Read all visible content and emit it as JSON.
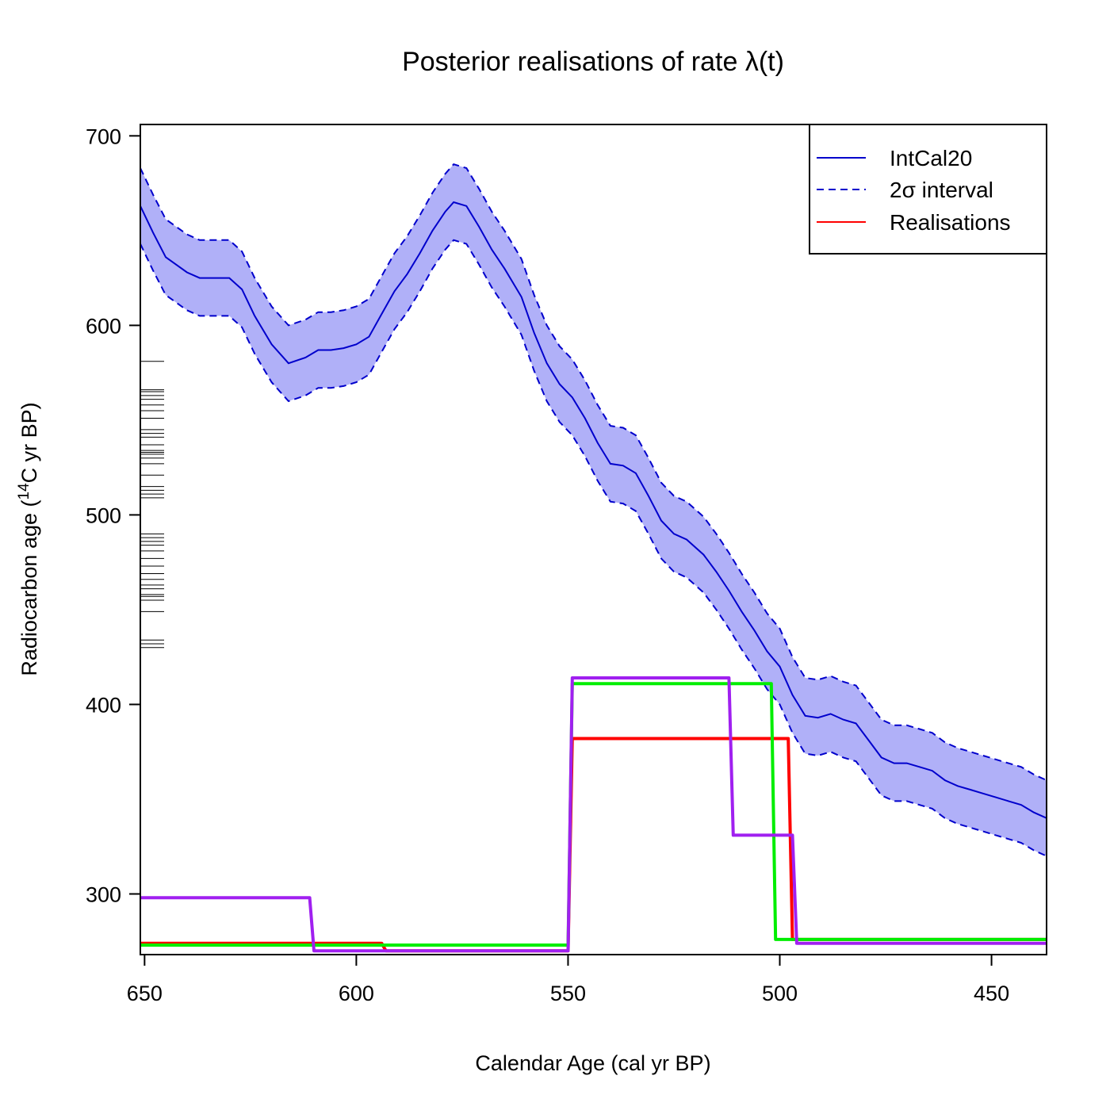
{
  "chart_data": {
    "type": "line",
    "title": "Posterior realisations of rate λ(t)",
    "xlabel": "Calendar Age (cal yr BP)",
    "ylabel_pre": "Radiocarbon age (",
    "ylabel_sup": "14",
    "ylabel_post": "C yr BP)",
    "x_reversed": true,
    "xlim": [
      651,
      437
    ],
    "ylim": [
      268,
      706
    ],
    "x_ticks": [
      "650",
      "600",
      "550",
      "500",
      "450"
    ],
    "y_ticks": [
      "300",
      "400",
      "500",
      "600",
      "700"
    ],
    "legend": {
      "position": "top-right",
      "entries": [
        {
          "label": "IntCal20",
          "color": "#0000cc",
          "style": "solid"
        },
        {
          "label": "2σ interval",
          "color": "#0000cc",
          "style": "dashed"
        },
        {
          "label": "Realisations",
          "color": "#ff0000",
          "style": "solid"
        }
      ]
    },
    "intcal20": {
      "color": "#0000cc",
      "band_fill": "#b0b0f8",
      "half_width_2sigma": 20,
      "x": [
        651,
        648,
        645,
        640,
        637,
        633,
        630,
        627,
        624,
        620,
        616,
        612,
        609,
        606,
        603,
        600,
        597,
        594,
        591,
        588,
        585,
        582,
        579,
        577,
        574,
        571,
        568,
        565,
        561,
        558,
        555,
        552,
        549,
        546,
        543,
        540,
        537,
        534,
        531,
        528,
        525,
        522,
        518,
        515,
        512,
        509,
        506,
        503,
        500,
        497,
        494,
        491,
        488,
        485,
        482,
        479,
        476,
        473,
        470,
        467,
        464,
        461,
        458,
        455,
        452,
        449,
        446,
        443,
        440,
        437
      ],
      "y": [
        663,
        649,
        636,
        628,
        625,
        625,
        625,
        619,
        605,
        590,
        580,
        583,
        587,
        587,
        588,
        590,
        594,
        606,
        618,
        627,
        638,
        650,
        660,
        665,
        663,
        652,
        640,
        630,
        615,
        596,
        580,
        569,
        562,
        551,
        538,
        527,
        526,
        522,
        510,
        497,
        490,
        487,
        479,
        470,
        460,
        449,
        439,
        428,
        420,
        405,
        394,
        393,
        395,
        392,
        390,
        381,
        372,
        369,
        369,
        367,
        365,
        360,
        357,
        355,
        353,
        351,
        349,
        347,
        343,
        340
      ]
    },
    "rugs": [
      581,
      566,
      565,
      563,
      561,
      558,
      555,
      551,
      545,
      543,
      541,
      537,
      534,
      533,
      532,
      530,
      527,
      521,
      515,
      513,
      511,
      509,
      490,
      488,
      486,
      484,
      481,
      477,
      473,
      469,
      466,
      463,
      461,
      458,
      457,
      455,
      449,
      434,
      432,
      430
    ],
    "series": [
      {
        "color": "#ff0000",
        "x": [
          651,
          594,
          593,
          550,
          549,
          498,
          497,
          437
        ],
        "y": [
          274,
          274,
          270,
          270,
          382,
          382,
          276,
          276
        ]
      },
      {
        "color": "#00ee00",
        "x": [
          651,
          550,
          549,
          502,
          501,
          437
        ],
        "y": [
          273,
          273,
          411,
          411,
          276,
          276
        ]
      },
      {
        "color": "#a020f0",
        "x": [
          651,
          611,
          610,
          550,
          549,
          512,
          511,
          497,
          496,
          437
        ],
        "y": [
          298,
          298,
          270,
          270,
          414,
          414,
          331,
          331,
          274,
          274
        ]
      }
    ]
  }
}
